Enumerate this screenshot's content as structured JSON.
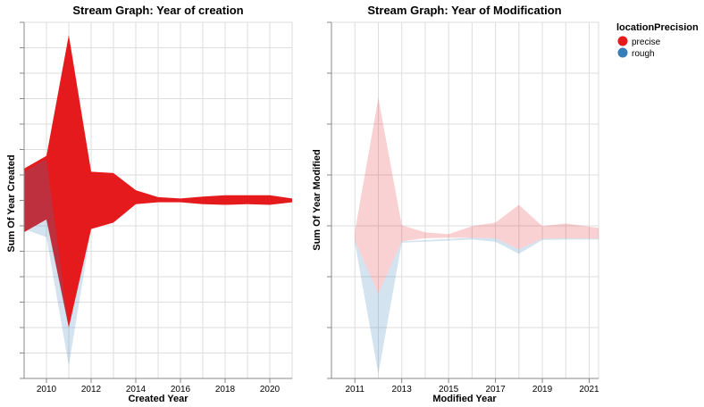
{
  "legend": {
    "title": "locationPrecision",
    "items": [
      {
        "label": "precise",
        "color": "#e41a1c"
      },
      {
        "label": "rough",
        "color": "#377eb8"
      }
    ]
  },
  "chart_data": [
    {
      "type": "area",
      "subtype": "streamgraph",
      "title": "Stream Graph: Year of creation",
      "xlabel": "Created Year",
      "ylabel": "Sum Of Year Created",
      "xlim": [
        2009,
        2021
      ],
      "x_ticks": [
        "2010",
        "2012",
        "2014",
        "2016",
        "2018",
        "2020"
      ],
      "grid": true,
      "series": [
        {
          "name": "precise",
          "color": "#e41a1c",
          "opacity": 1.0,
          "points": [
            {
              "x": 2009,
              "y0": -5,
              "y1": 5
            },
            {
              "x": 2010,
              "y0": -3,
              "y1": 7
            },
            {
              "x": 2011,
              "y0": -20,
              "y1": 26
            },
            {
              "x": 2012,
              "y0": -4.5,
              "y1": 4.5
            },
            {
              "x": 2013,
              "y0": -3.5,
              "y1": 4.3
            },
            {
              "x": 2014,
              "y0": -0.6,
              "y1": 1.6
            },
            {
              "x": 2015,
              "y0": -0.3,
              "y1": 0.5
            },
            {
              "x": 2016,
              "y0": -0.3,
              "y1": 0.3
            },
            {
              "x": 2017,
              "y0": -0.6,
              "y1": 0.6
            },
            {
              "x": 2018,
              "y0": -0.7,
              "y1": 0.8
            },
            {
              "x": 2019,
              "y0": -0.6,
              "y1": 0.8
            },
            {
              "x": 2020,
              "y0": -0.7,
              "y1": 0.8
            },
            {
              "x": 2021,
              "y0": -0.3,
              "y1": 0.3
            }
          ]
        },
        {
          "name": "rough",
          "color": "#377eb8",
          "opacity": 0.22,
          "points": [
            {
              "x": 2009,
              "y0": -4.5,
              "y1": 4.5
            },
            {
              "x": 2010,
              "y0": -5.8,
              "y1": 6.5
            },
            {
              "x": 2011,
              "y0": -26,
              "y1": -20
            },
            {
              "x": 2012,
              "y0": -4.5,
              "y1": -4.5
            },
            {
              "x": 2013,
              "y0": -3.5,
              "y1": -3.5
            }
          ]
        }
      ]
    },
    {
      "type": "area",
      "subtype": "streamgraph",
      "title": "Stream Graph: Year of Modification",
      "xlabel": "Modified Year",
      "ylabel": "Sum Of Year Modified",
      "xlim": [
        2010,
        2021.4
      ],
      "x_ticks": [
        "2011",
        "2013",
        "2015",
        "2017",
        "2019",
        "2021"
      ],
      "grid": true,
      "series": [
        {
          "name": "precise",
          "color": "#e41a1c",
          "opacity": 0.2,
          "points": [
            {
              "x": 2011,
              "y0": -1,
              "y1": 1
            },
            {
              "x": 2012,
              "y0": -13,
              "y1": 31
            },
            {
              "x": 2013,
              "y0": -1.2,
              "y1": 2.4
            },
            {
              "x": 2014,
              "y0": -0.5,
              "y1": 0.8
            },
            {
              "x": 2015,
              "y0": -0.4,
              "y1": 0.4
            },
            {
              "x": 2016,
              "y0": -0.4,
              "y1": 2.2
            },
            {
              "x": 2017,
              "y0": -0.5,
              "y1": 3
            },
            {
              "x": 2018,
              "y0": -3,
              "y1": 7
            },
            {
              "x": 2019,
              "y0": -0.6,
              "y1": 2.2
            },
            {
              "x": 2020,
              "y0": -0.5,
              "y1": 2.8
            },
            {
              "x": 2021.4,
              "y0": -0.6,
              "y1": 1.8
            }
          ]
        },
        {
          "name": "rough",
          "color": "#377eb8",
          "opacity": 0.22,
          "points": [
            {
              "x": 2011,
              "y0": -1.5,
              "y1": -1
            },
            {
              "x": 2012,
              "y0": -31,
              "y1": -13
            },
            {
              "x": 2013,
              "y0": -1.5,
              "y1": -1.2
            },
            {
              "x": 2016,
              "y0": -0.8,
              "y1": -0.4
            },
            {
              "x": 2017,
              "y0": -1.3,
              "y1": -0.5
            },
            {
              "x": 2018,
              "y0": -4,
              "y1": -3
            },
            {
              "x": 2019,
              "y0": -0.9,
              "y1": -0.6
            },
            {
              "x": 2020,
              "y0": -0.8,
              "y1": -0.5
            },
            {
              "x": 2021.4,
              "y0": -0.8,
              "y1": -0.6
            }
          ]
        }
      ]
    }
  ]
}
